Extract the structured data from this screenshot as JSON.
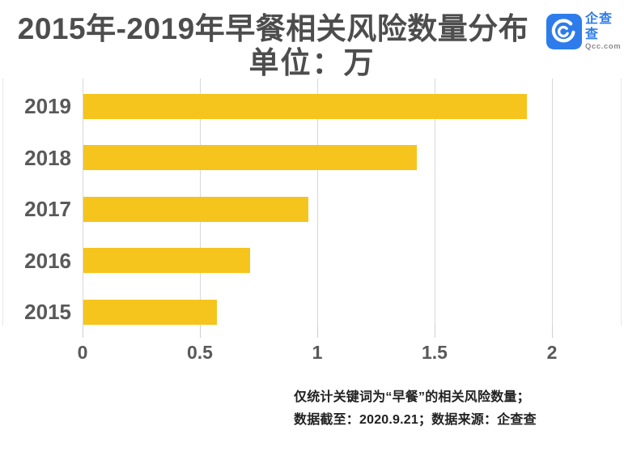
{
  "header": {
    "title_line1": "2015年-2019年早餐相关风险数量分布",
    "title_line2": "单位：万",
    "logo": {
      "icon": "qcc-logo-icon",
      "name": "企查查",
      "domain": "Qcc.com"
    }
  },
  "chart_data": {
    "type": "bar",
    "orientation": "horizontal",
    "title": "2015年-2019年早餐相关风险数量分布",
    "subtitle": "单位：万",
    "unit": "万",
    "categories": [
      "2019",
      "2018",
      "2017",
      "2016",
      "2015"
    ],
    "values": [
      1.89,
      1.42,
      0.96,
      0.71,
      0.57
    ],
    "xlabel": "",
    "ylabel": "",
    "xlim": [
      0,
      2
    ],
    "xticks": [
      0,
      0.5,
      1,
      1.5,
      2
    ],
    "xtick_labels": [
      "0",
      "0.5",
      "1",
      "1.5",
      "2"
    ],
    "grid": true,
    "legend": false
  },
  "footer": {
    "note_line1": "仅统计关键词为“早餐”的相关风险数量；",
    "note_line2": "数据截至：2020.9.21；数据来源：企查查"
  },
  "colors": {
    "bar": "#f5c51d",
    "grid": "#d8d8d8",
    "title_text": "#4d4d4d",
    "axis_text": "#595959",
    "footer_text": "#212121",
    "logo_blue": "#2e7ceb",
    "logo_domain_gray": "#8c8c8c"
  }
}
